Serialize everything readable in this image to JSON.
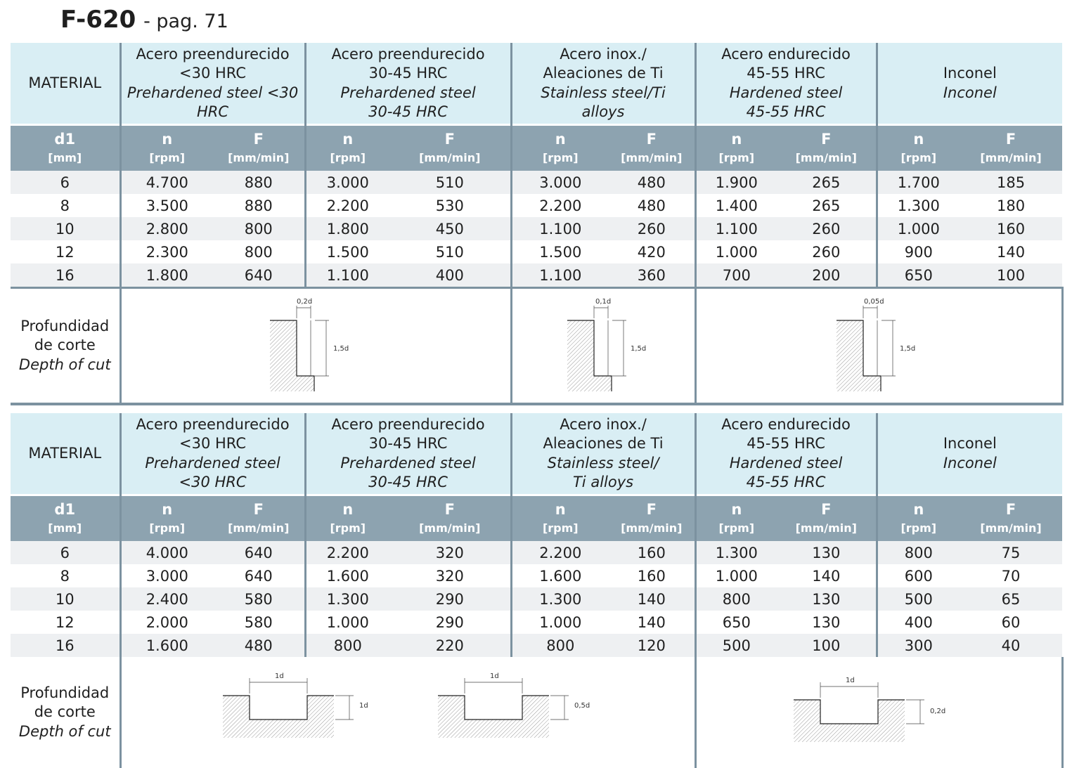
{
  "header": {
    "code": "F-620",
    "page": "- pag. 71"
  },
  "tables": [
    {
      "material_label": "MATERIAL",
      "materials": [
        {
          "es1": "Acero preendurecido",
          "es2": "<30 HRC",
          "en1": "Prehardened steel <30",
          "en2": "HRC"
        },
        {
          "es1": "Acero preendurecido",
          "es2": "30-45 HRC",
          "en1": "Prehardened steel",
          "en2": "30-45 HRC"
        },
        {
          "es1": "Acero inox./",
          "es2": "Aleaciones de Ti",
          "en1": "Stainless steel/Ti",
          "en2": "alloys"
        },
        {
          "es1": "Acero endurecido",
          "es2": "45-55 HRC",
          "en1": "Hardened steel",
          "en2": "45-55 HRC"
        },
        {
          "es1": "Inconel",
          "en1": "Inconel"
        }
      ],
      "col_d": "d1",
      "unit_d": "[mm]",
      "col_n": "n",
      "unit_n": "[rpm]",
      "col_f": "F",
      "unit_f": "[mm/min]",
      "rows": [
        [
          "6",
          "4.700",
          "880",
          "3.000",
          "510",
          "3.000",
          "480",
          "1.900",
          "265",
          "1.700",
          "185"
        ],
        [
          "8",
          "3.500",
          "880",
          "2.200",
          "530",
          "2.200",
          "480",
          "1.400",
          "265",
          "1.300",
          "180"
        ],
        [
          "10",
          "2.800",
          "800",
          "1.800",
          "450",
          "1.100",
          "260",
          "1.100",
          "260",
          "1.000",
          "160"
        ],
        [
          "12",
          "2.300",
          "800",
          "1.500",
          "510",
          "1.500",
          "420",
          "1.000",
          "260",
          "900",
          "140"
        ],
        [
          "16",
          "1.800",
          "640",
          "1.100",
          "400",
          "1.100",
          "360",
          "700",
          "200",
          "650",
          "100"
        ]
      ],
      "depth_label": {
        "es1": "Profundidad",
        "es2": "de corte",
        "en": "Depth of cut"
      },
      "depth_figures": [
        {
          "width": "0,2d",
          "depth": "1,5d"
        },
        {
          "width": "0,1d",
          "depth": "1,5d"
        },
        {
          "width": "0,05d",
          "depth": "1,5d"
        }
      ]
    },
    {
      "material_label": "MATERIAL",
      "materials": [
        {
          "es1": "Acero preendurecido",
          "es2": "<30 HRC",
          "en1": "Prehardened steel",
          "en2": "<30 HRC"
        },
        {
          "es1": "Acero preendurecido",
          "es2": "30-45 HRC",
          "en1": "Prehardened steel",
          "en2": "30-45 HRC"
        },
        {
          "es1": "Acero inox./",
          "es2": "Aleaciones de Ti",
          "en1": "Stainless steel/",
          "en2": "Ti alloys"
        },
        {
          "es1": "Acero endurecido",
          "es2": "45-55 HRC",
          "en1": "Hardened steel",
          "en2": "45-55 HRC"
        },
        {
          "es1": "Inconel",
          "en1": "Inconel"
        }
      ],
      "col_d": "d1",
      "unit_d": "[mm]",
      "col_n": "n",
      "unit_n": "[rpm]",
      "col_f": "F",
      "unit_f": "[mm/min]",
      "rows": [
        [
          "6",
          "4.000",
          "640",
          "2.200",
          "320",
          "2.200",
          "160",
          "1.300",
          "130",
          "800",
          "75"
        ],
        [
          "8",
          "3.000",
          "640",
          "1.600",
          "320",
          "1.600",
          "160",
          "1.000",
          "140",
          "600",
          "70"
        ],
        [
          "10",
          "2.400",
          "580",
          "1.300",
          "290",
          "1.300",
          "140",
          "800",
          "130",
          "500",
          "65"
        ],
        [
          "12",
          "2.000",
          "580",
          "1.000",
          "290",
          "1.000",
          "140",
          "650",
          "130",
          "400",
          "60"
        ],
        [
          "16",
          "1.600",
          "480",
          "800",
          "220",
          "800",
          "120",
          "500",
          "100",
          "300",
          "40"
        ]
      ],
      "depth_label": {
        "es1": "Profundidad",
        "es2": "de corte",
        "en": "Depth of cut"
      },
      "depth_figures": [
        {
          "width": "1d",
          "depth": "1d"
        },
        {
          "width": "1d",
          "depth": "0,5d"
        },
        {
          "width": "1d",
          "depth": "0,2d"
        }
      ]
    }
  ]
}
